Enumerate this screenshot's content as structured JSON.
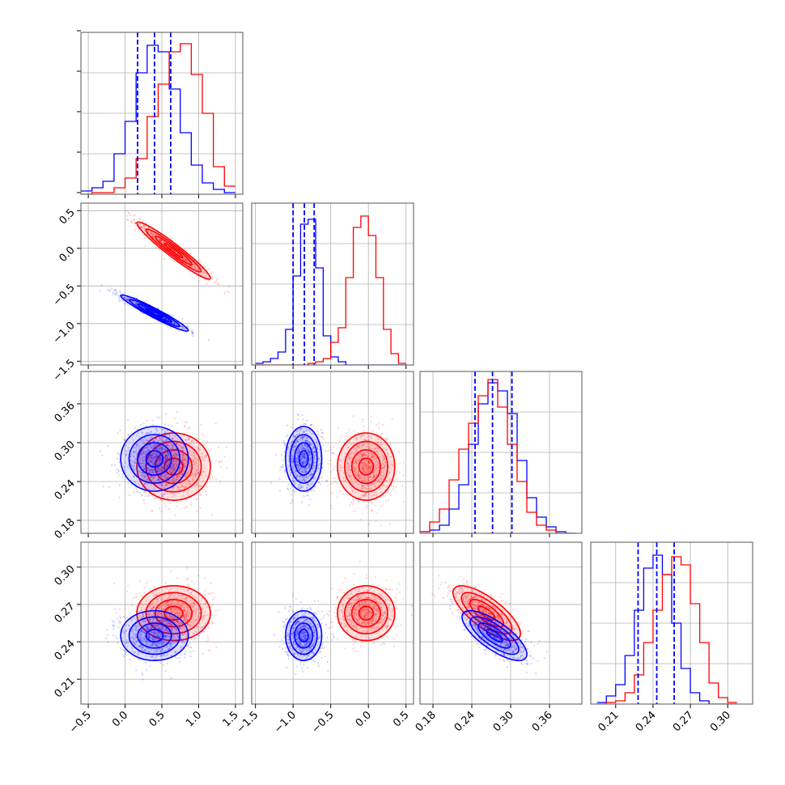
{
  "chart_data": {
    "type": "corner",
    "grid": true,
    "colors": {
      "red": "#ff0000",
      "blue": "#0000ff",
      "quantile_line": "#0000ff"
    },
    "parameters": [
      {
        "id": "p1",
        "ticks": [
          -0.5,
          0.0,
          0.5,
          1.0,
          1.5
        ],
        "tick_labels": [
          "−0.5",
          "0.0",
          "0.5",
          "1.0",
          "1.5"
        ],
        "range": [
          -0.6,
          1.6
        ],
        "quantiles_blue": [
          0.17,
          0.4,
          0.62
        ]
      },
      {
        "id": "p2",
        "ticks": [
          -1.5,
          -1.0,
          -0.5,
          0.0,
          0.5
        ],
        "tick_labels": [
          "−1.5",
          "−1.0",
          "−0.5",
          "0.0",
          "0.5"
        ],
        "range": [
          -1.55,
          0.6
        ],
        "quantiles_blue": [
          -1.0,
          -0.85,
          -0.72
        ]
      },
      {
        "id": "p3",
        "ticks": [
          0.18,
          0.24,
          0.3,
          0.36
        ],
        "tick_labels": [
          "0.18",
          "0.24",
          "0.30",
          "0.36"
        ],
        "range": [
          0.16,
          0.41
        ],
        "quantiles_blue": [
          0.245,
          0.272,
          0.302
        ]
      },
      {
        "id": "p4",
        "ticks": [
          0.21,
          0.24,
          0.27,
          0.3
        ],
        "tick_labels": [
          "0.21",
          "0.24",
          "0.27",
          "0.30"
        ],
        "range": [
          0.19,
          0.32
        ],
        "quantiles_blue": [
          0.228,
          0.243,
          0.257
        ]
      }
    ],
    "series": [
      {
        "color": "red",
        "mean": [
          0.66,
          -0.03,
          0.263,
          0.263
        ],
        "std": [
          0.25,
          0.19,
          0.026,
          0.011
        ],
        "correlations": {
          "p1-p2": -0.96,
          "p3-p4": -0.75
        }
      },
      {
        "color": "blue",
        "mean": [
          0.4,
          -0.86,
          0.275,
          0.245
        ],
        "std": [
          0.23,
          0.12,
          0.025,
          0.01
        ],
        "correlations": {
          "p1-p2": -0.96,
          "p3-p4": -0.75
        }
      }
    ],
    "histograms": [
      {
        "parameter": "p1",
        "bin_edges": [
          -0.6,
          -0.45,
          -0.3,
          -0.15,
          0.0,
          0.15,
          0.3,
          0.45,
          0.6,
          0.75,
          0.9,
          1.05,
          1.2,
          1.35,
          1.5
        ],
        "blue_counts": [
          2,
          4,
          8,
          25,
          45,
          75,
          92,
          88,
          65,
          38,
          18,
          7,
          3,
          1
        ],
        "red_counts": [
          0,
          1,
          1,
          4,
          10,
          22,
          48,
          68,
          88,
          93,
          74,
          50,
          17,
          5
        ],
        "ylim": [
          0,
          100
        ]
      },
      {
        "parameter": "p2",
        "bin_edges": [
          -1.5,
          -1.4,
          -1.3,
          -1.2,
          -1.1,
          -1.0,
          -0.9,
          -0.8,
          -0.7,
          -0.6,
          -0.5,
          -0.4,
          -0.3,
          -0.2,
          -0.1,
          0.0,
          0.1,
          0.2,
          0.3,
          0.4,
          0.5
        ],
        "blue_counts": [
          1,
          2,
          4,
          8,
          22,
          55,
          87,
          90,
          60,
          18,
          5,
          2,
          0,
          0,
          0,
          0,
          0,
          0,
          0,
          0
        ],
        "red_counts": [
          0,
          0,
          0,
          0,
          0,
          0,
          0,
          1,
          2,
          4,
          14,
          23,
          54,
          85,
          92,
          80,
          54,
          22,
          7,
          1
        ],
        "ylim": [
          0,
          100
        ]
      },
      {
        "parameter": "p3",
        "bin_edges": [
          0.16,
          0.175,
          0.19,
          0.205,
          0.22,
          0.235,
          0.25,
          0.265,
          0.28,
          0.295,
          0.31,
          0.325,
          0.34,
          0.355,
          0.37,
          0.385,
          0.4
        ],
        "blue_counts": [
          1,
          2,
          5,
          15,
          30,
          55,
          80,
          93,
          88,
          74,
          45,
          22,
          10,
          4,
          1,
          0
        ],
        "red_counts": [
          1,
          7,
          15,
          33,
          52,
          68,
          85,
          95,
          78,
          55,
          32,
          13,
          5,
          2,
          0,
          0
        ],
        "ylim": [
          0,
          100
        ]
      },
      {
        "parameter": "p4",
        "bin_edges": [
          0.195,
          0.2025,
          0.21,
          0.2175,
          0.225,
          0.2325,
          0.24,
          0.2475,
          0.255,
          0.2625,
          0.27,
          0.2775,
          0.285,
          0.2925,
          0.3,
          0.3075
        ],
        "blue_counts": [
          1,
          5,
          12,
          30,
          58,
          84,
          92,
          80,
          50,
          22,
          7,
          2,
          0,
          0,
          0
        ],
        "red_counts": [
          0,
          1,
          2,
          7,
          18,
          38,
          58,
          80,
          91,
          86,
          62,
          38,
          13,
          4,
          1
        ],
        "ylim": [
          0,
          100
        ]
      }
    ]
  }
}
